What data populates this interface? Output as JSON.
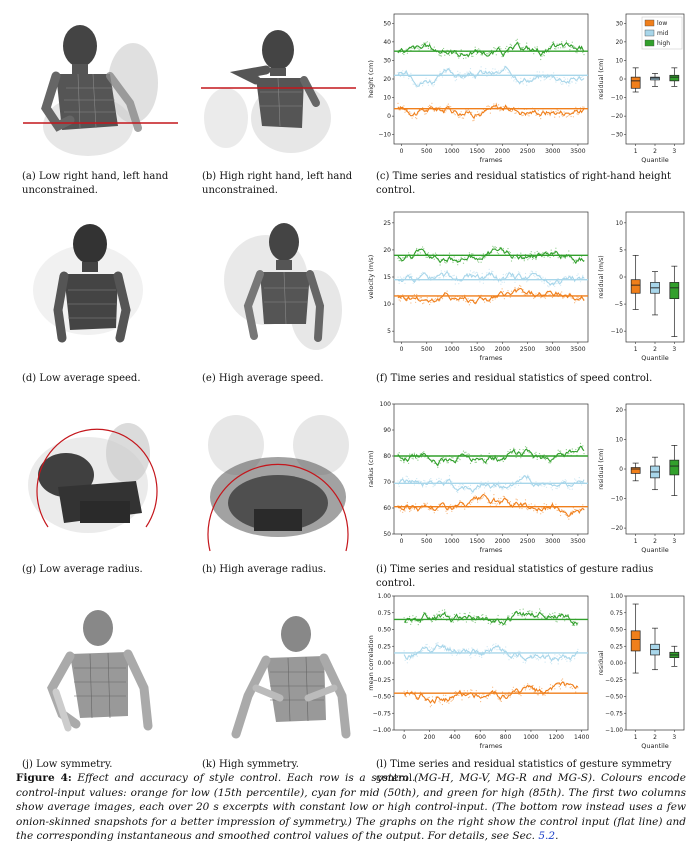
{
  "colors": {
    "low": "#f07f1b",
    "mid": "#a8d6ea",
    "high": "#32a02c",
    "red": "#c4161c"
  },
  "rows": [
    {
      "caption_a": "(a)  Low right hand, left hand unconstrained.",
      "caption_b": "(b)  High right hand, left hand unconstrained.",
      "caption_c": "(c)  Time series and residual statistics of right-hand height control.",
      "ts": {
        "ylabel": "height (cm)",
        "xlabel": "frames",
        "yticks": [
          "−10",
          "0",
          "10",
          "20",
          "30",
          "40",
          "50"
        ],
        "xticks": [
          "0",
          "500",
          "1000",
          "1500",
          "2000",
          "2500",
          "3000",
          "3500"
        ],
        "ylim": [
          -15,
          55
        ],
        "xlim": [
          -150,
          3700
        ],
        "levels": {
          "low": 4,
          "mid": 22,
          "high": 35
        },
        "legend": [
          "low",
          "mid",
          "high"
        ]
      },
      "box": {
        "ylabel": "residual (cm)",
        "xlabel": "Quantile",
        "xticks": [
          "1",
          "2",
          "3"
        ],
        "yticks": [
          "−30",
          "−20",
          "−10",
          "0",
          "10",
          "20",
          "30"
        ],
        "ylim": [
          -35,
          35
        ],
        "stats": [
          [
            -7,
            -5,
            -1,
            1,
            6
          ],
          [
            -4,
            -0.5,
            0.5,
            1,
            3
          ],
          [
            -4,
            -1,
            1,
            2,
            6
          ]
        ]
      }
    },
    {
      "caption_a": "(d)  Low average speed.",
      "caption_b": "(e)  High average speed.",
      "caption_c": "(f)  Time series and residual statistics of speed control.",
      "ts": {
        "ylabel": "velocity (m/s)",
        "xlabel": "frames",
        "yticks": [
          "5",
          "10",
          "15",
          "20",
          "25"
        ],
        "xticks": [
          "0",
          "500",
          "1000",
          "1500",
          "2000",
          "2500",
          "3000",
          "3500"
        ],
        "ylim": [
          3,
          27
        ],
        "xlim": [
          -150,
          3700
        ],
        "levels": {
          "low": 11.5,
          "mid": 14.5,
          "high": 19
        }
      },
      "box": {
        "ylabel": "residual (m/s)",
        "xlabel": "Quantile",
        "xticks": [
          "1",
          "2",
          "3"
        ],
        "yticks": [
          "−10",
          "−5",
          "0",
          "5",
          "10"
        ],
        "ylim": [
          -12,
          12
        ],
        "stats": [
          [
            -6,
            -3,
            -1.5,
            -0.5,
            4
          ],
          [
            -7,
            -3,
            -2,
            -1,
            1
          ],
          [
            -11,
            -4,
            -2,
            -1,
            2
          ]
        ]
      }
    },
    {
      "caption_a": "(g)  Low average radius.",
      "caption_b": "(h)  High average radius.",
      "caption_c": "(i)  Time series and residual statistics of gesture radius control.",
      "ts": {
        "ylabel": "radius (cm)",
        "xlabel": "frames",
        "yticks": [
          "50",
          "60",
          "70",
          "80",
          "90",
          "100"
        ],
        "xticks": [
          "0",
          "500",
          "1000",
          "1500",
          "2000",
          "2500",
          "3000",
          "3500"
        ],
        "ylim": [
          50,
          100
        ],
        "xlim": [
          -150,
          3700
        ],
        "levels": {
          "low": 60.5,
          "mid": 69.5,
          "high": 80
        }
      },
      "box": {
        "ylabel": "residual (cm)",
        "xlabel": "Quantile",
        "xticks": [
          "1",
          "2",
          "3"
        ],
        "yticks": [
          "−20",
          "−10",
          "0",
          "10",
          "20"
        ],
        "ylim": [
          -22,
          22
        ],
        "stats": [
          [
            -4,
            -1.5,
            0,
            0.5,
            2
          ],
          [
            -7,
            -3,
            -1,
            1,
            4
          ],
          [
            -9,
            -2,
            1,
            3,
            8
          ]
        ]
      }
    },
    {
      "caption_a": "(j)  Low symmetry.",
      "caption_b": "(k)  High symmetry.",
      "caption_c": "(l)  Time series and residual statistics of gesture symmetry control.",
      "ts": {
        "ylabel": "mean correlation",
        "xlabel": "frames",
        "yticks": [
          "−1.00",
          "−0.75",
          "−0.50",
          "−0.25",
          "0.00",
          "0.25",
          "0.50",
          "0.75",
          "1.00"
        ],
        "xticks": [
          "0",
          "200",
          "400",
          "600",
          "800",
          "1000",
          "1200",
          "1400"
        ],
        "ylim": [
          -1,
          1
        ],
        "xlim": [
          -80,
          1450
        ],
        "levels": {
          "low": -0.45,
          "mid": 0.15,
          "high": 0.65
        }
      },
      "box": {
        "ylabel": "residual",
        "xlabel": "Quantile",
        "xticks": [
          "1",
          "2",
          "3"
        ],
        "yticks": [
          "−1.00",
          "−0.75",
          "−0.50",
          "−0.25",
          "0.00",
          "0.25",
          "0.50",
          "0.75",
          "1.00"
        ],
        "ylim": [
          -1,
          1
        ],
        "stats": [
          [
            -0.15,
            0.18,
            0.35,
            0.48,
            0.88
          ],
          [
            -0.1,
            0.12,
            0.2,
            0.28,
            0.52
          ],
          [
            -0.05,
            0.08,
            0.12,
            0.16,
            0.25
          ]
        ]
      }
    }
  ],
  "figure_caption": {
    "lead": "Figure 4:",
    "body": " Effect and accuracy of style control. Each row is a system (MG-H, MG-V, MG-R and MG-S). Colours encode control-input values: orange for low (15th percentile), cyan for mid (50th), and green for high (85th). The first two columns show average images, each over 20 s excerpts with constant low or high control-input. (The bottom row instead uses a few onion-skinned snapshots for a better impression of symmetry.) The graphs on the right show the control input (flat line) and the corresponding instantaneous and smoothed control values of the output. For details, see Sec. ",
    "ref": "5.2",
    "end": "."
  }
}
